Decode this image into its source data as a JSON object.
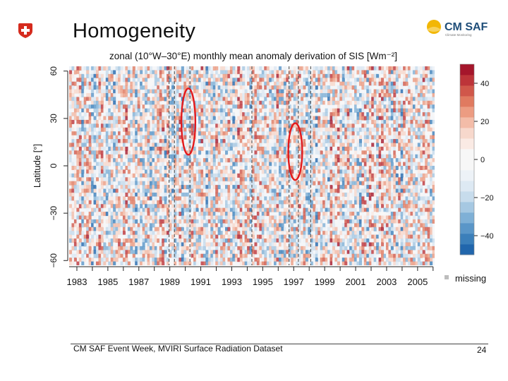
{
  "slide": {
    "title": "Homogeneity",
    "logo_text": "CM SAF",
    "logo_subtext": "Climate Monitoring",
    "footer_text": "CM SAF Event Week, MVIRI Surface Radiation Dataset",
    "page_number": "24"
  },
  "chart_data": {
    "type": "heatmap",
    "title": "zonal (10°W–30°E) monthly mean anomaly derivation of SIS [Wm⁻²]",
    "ylabel": "Latitude [°]",
    "xlabel": "",
    "x_range": [
      1982.5,
      2006.1
    ],
    "ylim": [
      -63,
      63
    ],
    "x_ticks": [
      1983,
      1985,
      1987,
      1989,
      1991,
      1993,
      1995,
      1997,
      1999,
      2001,
      2003,
      2005
    ],
    "x_tick_labels": [
      "1983",
      "1985",
      "1987",
      "1989",
      "1991",
      "1993",
      "1995",
      "1997",
      "1999",
      "2001",
      "2003",
      "2005"
    ],
    "y_ticks": [
      -60,
      -30,
      0,
      30,
      60
    ],
    "y_tick_labels": [
      "−60",
      "−30",
      "0",
      "30",
      "60"
    ],
    "colorbar": {
      "range": [
        -50,
        50
      ],
      "ticks": [
        -40,
        -20,
        0,
        20,
        40
      ],
      "tick_labels": [
        "−40",
        "−20",
        "0",
        "20",
        "40"
      ],
      "colors": [
        "#2166ac",
        "#3b7fba",
        "#5a96c8",
        "#7fb0d6",
        "#a6c8e2",
        "#c7dcec",
        "#dde9f3",
        "#edf2f7",
        "#f7f7f7",
        "#f7f7f7",
        "#faeae4",
        "#f7d8cc",
        "#f3bca8",
        "#ec9c82",
        "#e07a60",
        "#d0574a",
        "#bd3439",
        "#a5162b"
      ]
    },
    "missing_label": "missing",
    "missing_color": "#bdbdbd",
    "satellite_changes_years": [
      1988.95,
      1989.3,
      1990.3,
      1994.3,
      1996.7,
      1997.3,
      1998.1
    ],
    "highlights": [
      {
        "x": 1990.2,
        "y": 28,
        "rx": 0.45,
        "ry": 21
      },
      {
        "x": 1997.1,
        "y": 9,
        "rx": 0.45,
        "ry": 18
      }
    ],
    "highlight_color": "#e31a1c",
    "grid": false,
    "legend_position": "right"
  }
}
